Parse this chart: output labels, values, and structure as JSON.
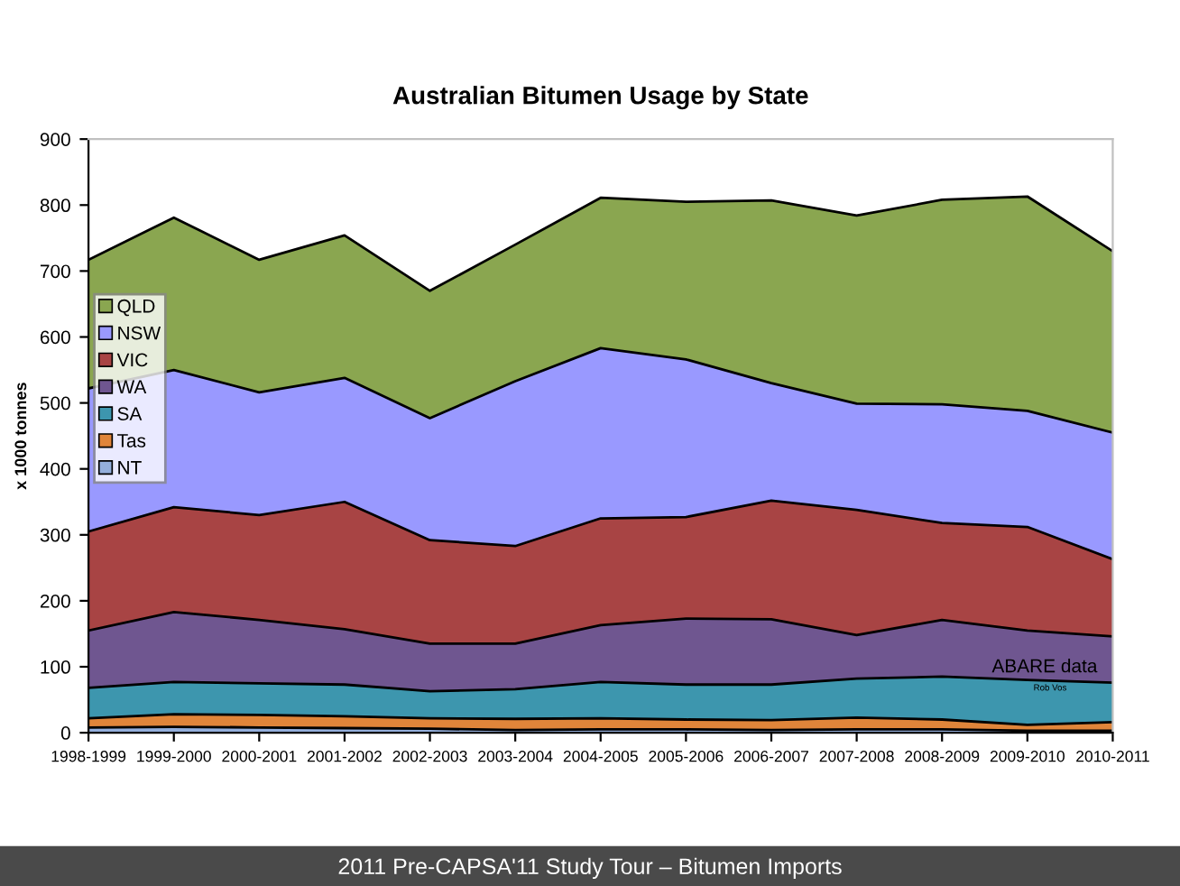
{
  "chart_data": {
    "type": "area",
    "stacked": true,
    "title": "Australian Bitumen Usage by State",
    "ylabel": "x 1000 tonnes",
    "categories": [
      "1998-1999",
      "1999-2000",
      "2000-2001",
      "2001-2002",
      "2002-2003",
      "2003-2004",
      "2004-2005",
      "2005-2006",
      "2006-2007",
      "2007-2008",
      "2008-2009",
      "2009-2010",
      "2010-2011"
    ],
    "series": [
      {
        "name": "NT",
        "color": "#94afdc",
        "values": [
          8,
          9,
          8,
          7,
          6,
          4,
          5,
          5,
          4,
          5,
          5,
          3,
          3
        ]
      },
      {
        "name": "Tas",
        "color": "#e0853a",
        "values": [
          14,
          19,
          19,
          18,
          16,
          17,
          17,
          15,
          15,
          18,
          15,
          9,
          13
        ]
      },
      {
        "name": "SA",
        "color": "#3d96ae",
        "values": [
          46,
          49,
          48,
          48,
          41,
          45,
          55,
          53,
          54,
          59,
          65,
          68,
          60
        ]
      },
      {
        "name": "WA",
        "color": "#6f5690",
        "values": [
          87,
          106,
          96,
          84,
          72,
          69,
          86,
          100,
          99,
          66,
          86,
          75,
          70
        ]
      },
      {
        "name": "VIC",
        "color": "#a84444",
        "values": [
          150,
          159,
          159,
          193,
          157,
          148,
          162,
          154,
          180,
          190,
          147,
          157,
          117
        ]
      },
      {
        "name": "NSW",
        "color": "#9999ff",
        "values": [
          217,
          208,
          186,
          188,
          185,
          250,
          258,
          239,
          178,
          161,
          180,
          176,
          192
        ]
      },
      {
        "name": "QLD",
        "color": "#8aa650",
        "values": [
          195,
          231,
          201,
          216,
          193,
          207,
          228,
          239,
          277,
          285,
          310,
          325,
          275
        ]
      }
    ],
    "ylim": [
      0,
      900
    ],
    "yticks": [
      0,
      100,
      200,
      300,
      400,
      500,
      600,
      700,
      800,
      900
    ],
    "grid": false,
    "legend": "left",
    "annotations": [
      "ABARE data",
      "Rob Vos",
      "2011 Pre-CAPSA'11 Study Tour – Bitumen Imports"
    ]
  }
}
